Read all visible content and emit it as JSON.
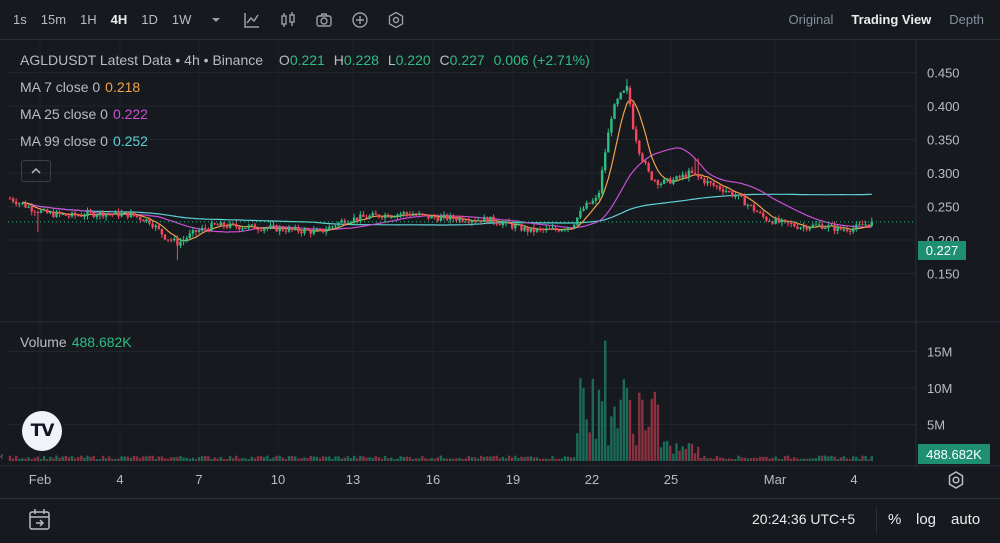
{
  "intervals": [
    "1s",
    "15m",
    "1H",
    "4H",
    "1D",
    "1W"
  ],
  "active_interval": "4H",
  "toolbar_icons": [
    "chevron-down-icon",
    "indicators-icon",
    "candle-type-icon",
    "camera-icon",
    "plus-circle-icon",
    "settings-hex-icon"
  ],
  "views": [
    "Original",
    "Trading View",
    "Depth"
  ],
  "active_view": "Trading View",
  "legend": {
    "symbol": "AGLDUSDT Latest Data",
    "interval": "4h",
    "exchange": "Binance",
    "o_label": "O",
    "o": "0.221",
    "h_label": "H",
    "h": "0.228",
    "l_label": "L",
    "l": "0.220",
    "c_label": "C",
    "c": "0.227",
    "change": "0.006 (+2.71%)"
  },
  "ma": [
    {
      "label": "MA 7 close 0",
      "value": "0.218",
      "color": "#f0a34a"
    },
    {
      "label": "MA 25 close 0",
      "value": "0.222",
      "color": "#c84fd6"
    },
    {
      "label": "MA 99 close 0",
      "value": "0.252",
      "color": "#5fd0d6"
    }
  ],
  "volume": {
    "label": "Volume",
    "value": "488.682K"
  },
  "price_axis": [
    "0.450",
    "0.400",
    "0.350",
    "0.300",
    "0.250",
    "0.200",
    "0.150"
  ],
  "current_price": "0.227",
  "volume_axis": [
    "15M",
    "10M",
    "5M"
  ],
  "time_axis": [
    "Feb",
    "4",
    "7",
    "10",
    "13",
    "16",
    "19",
    "22",
    "25",
    "Mar",
    "4"
  ],
  "footer": {
    "clock": "20:24:36 UTC+5",
    "percent": "%",
    "log": "log",
    "auto": "auto"
  },
  "colors": {
    "up": "#2ebd85",
    "down": "#f6465d",
    "background": "#161a1e"
  },
  "chart_data": {
    "type": "candlestick",
    "title": "AGLDUSDT Latest Data • 4h • Binance",
    "x_ticks": [
      "Feb",
      "4",
      "7",
      "10",
      "13",
      "16",
      "19",
      "22",
      "25",
      "Mar",
      "4"
    ],
    "ylim": [
      0.14,
      0.46
    ],
    "y_ticks": [
      0.15,
      0.2,
      0.25,
      0.3,
      0.35,
      0.4,
      0.45
    ],
    "last_close": 0.227,
    "key_points": [
      {
        "t": "Jan 31",
        "price": 0.26
      },
      {
        "t": "Feb 6",
        "price": 0.195,
        "low": 0.17
      },
      {
        "t": "Feb 15",
        "price": 0.24
      },
      {
        "t": "Feb 20",
        "price": 0.21
      },
      {
        "t": "Feb 22",
        "price": 0.26
      },
      {
        "t": "Feb 23",
        "price": 0.43,
        "high": 0.44
      },
      {
        "t": "Feb 24",
        "price": 0.29
      },
      {
        "t": "Feb 26",
        "price": 0.3,
        "high": 0.32
      },
      {
        "t": "Mar 1",
        "price": 0.23
      },
      {
        "t": "Mar 4",
        "price": 0.227
      }
    ],
    "volume_ylim": [
      0,
      17
    ],
    "volume_peak_M": 16.5,
    "volume_last": "488.682K",
    "ma_series": [
      "MA 7 close 0",
      "MA 25 close 0",
      "MA 99 close 0"
    ]
  }
}
